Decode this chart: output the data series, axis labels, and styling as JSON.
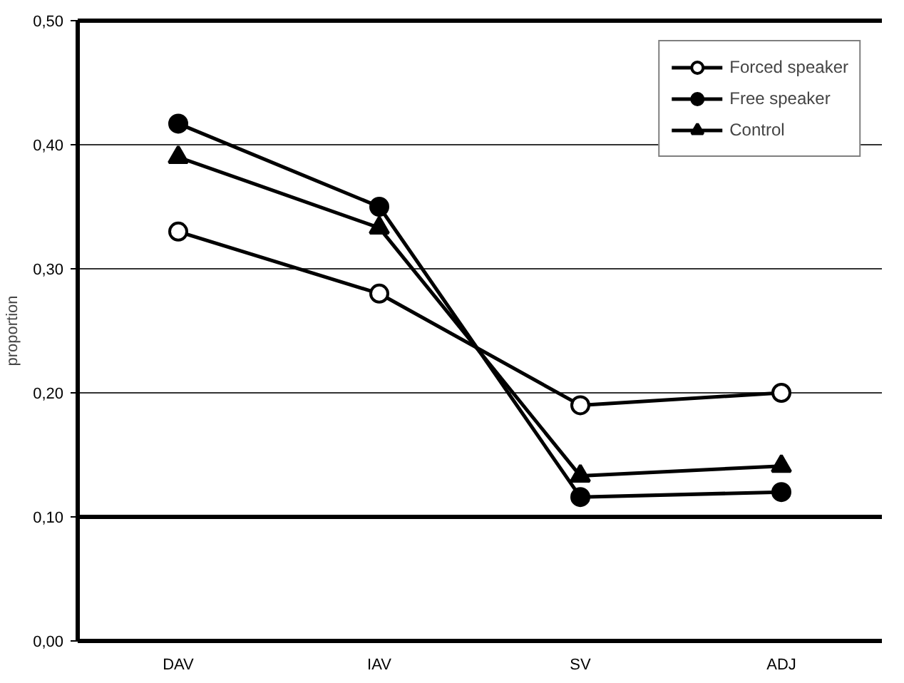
{
  "chart_data": {
    "type": "line",
    "ylabel": "proportion",
    "categories": [
      "DAV",
      "IAV",
      "SV",
      "ADJ"
    ],
    "series": [
      {
        "name": "Forced speaker",
        "color": "#000000",
        "marker": "circle_open",
        "values": [
          0.33,
          0.28,
          0.19,
          0.2
        ]
      },
      {
        "name": "Free speaker",
        "color": "#000000",
        "marker": "circle",
        "values": [
          0.417,
          0.35,
          0.116,
          0.12
        ]
      },
      {
        "name": "Control",
        "color": "#000000",
        "marker": "triangle",
        "values": [
          0.39,
          0.333,
          0.133,
          0.141
        ]
      }
    ],
    "ylim": [
      0,
      0.5
    ],
    "yticks": [
      {
        "value": 0,
        "label": "0,00"
      },
      {
        "value": 0.1,
        "label": "0,10"
      },
      {
        "value": 0.2,
        "label": "0,20"
      },
      {
        "value": 0.3,
        "label": "0,30"
      },
      {
        "value": 0.4,
        "label": "0,40"
      },
      {
        "value": 0.5,
        "label": "0,50"
      }
    ],
    "grid": "y",
    "legend": "top right",
    "line_style": "solid",
    "ref_lines": [
      {
        "axis": "y",
        "value": 0.1,
        "label": null,
        "color": "#000000"
      }
    ]
  }
}
